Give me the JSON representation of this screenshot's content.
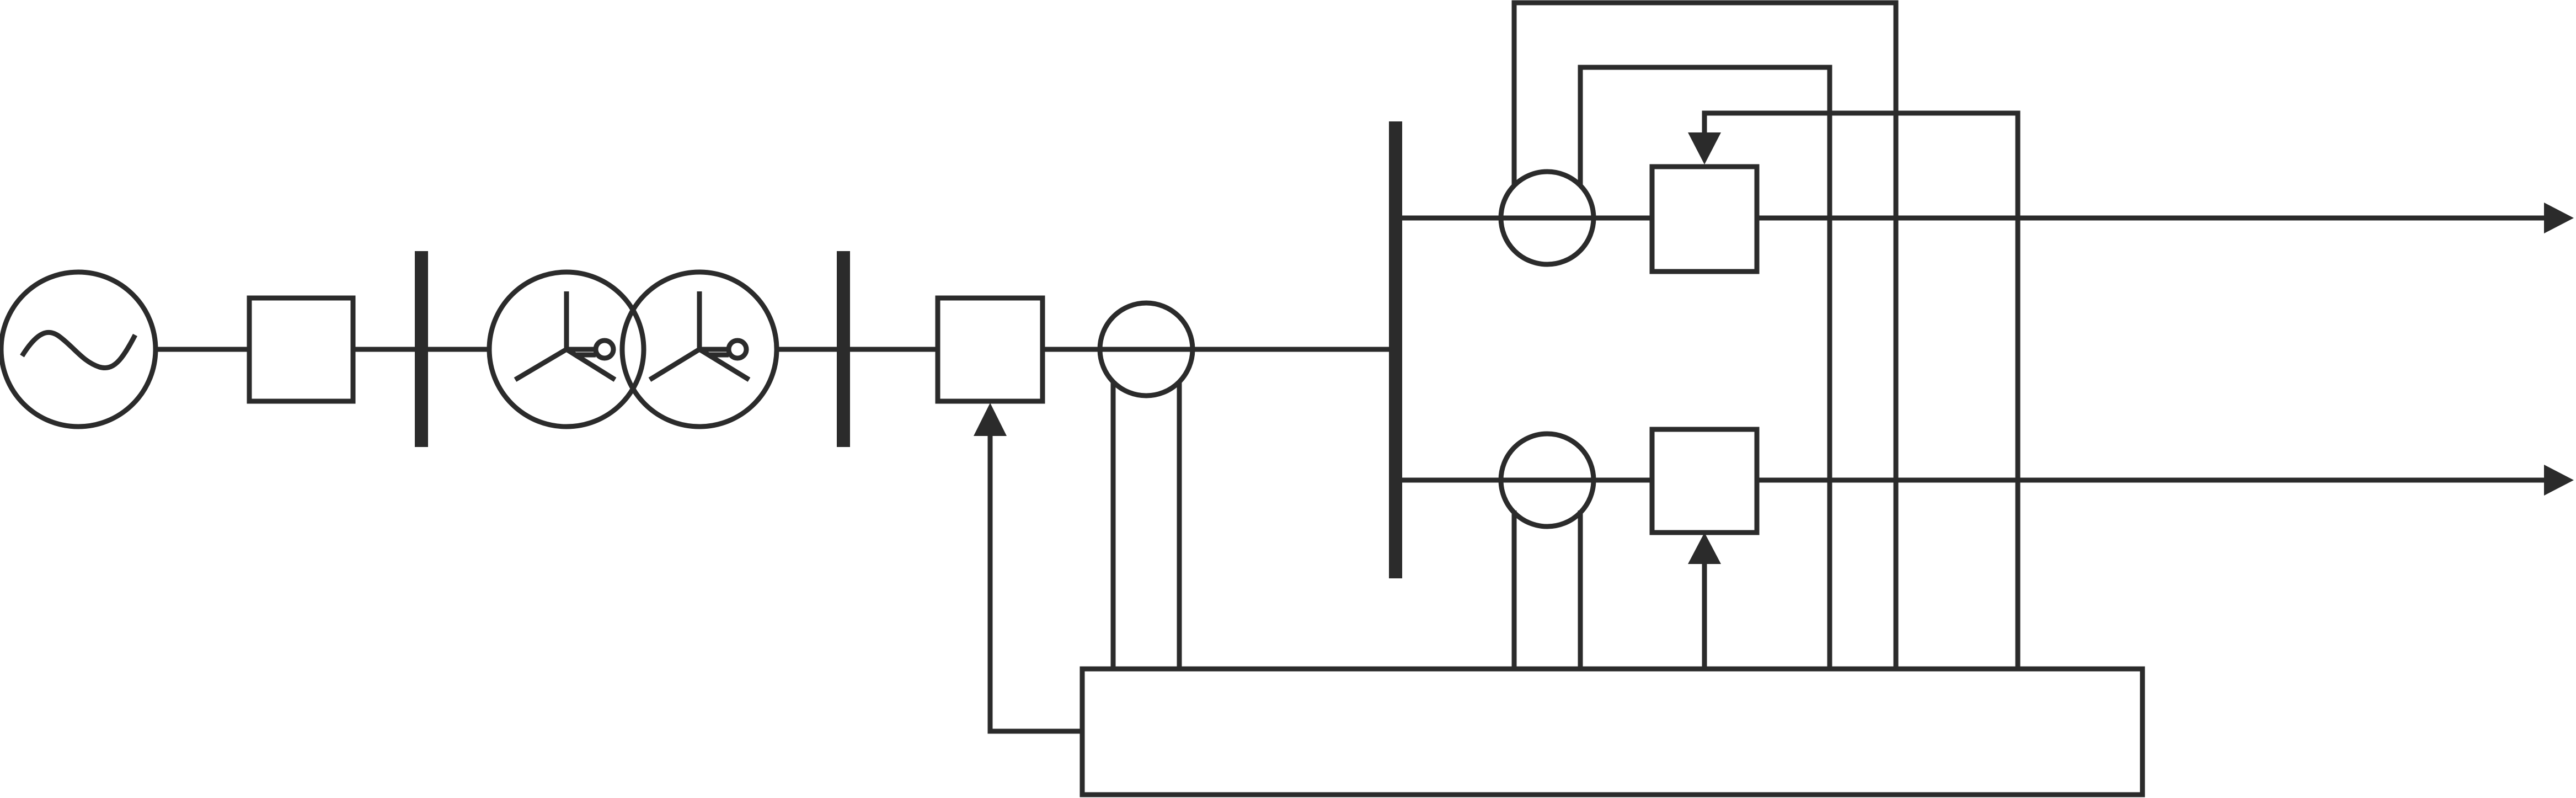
{
  "diagram": {
    "type": "single-line power system diagram",
    "colors": {
      "stroke": "#2b2b2b",
      "background": "#ffffff"
    },
    "components": [
      {
        "id": "generator",
        "symbol": "ac-source-icon"
      },
      {
        "id": "breaker-gen",
        "symbol": "box"
      },
      {
        "id": "bus-gen",
        "symbol": "vertical-bus"
      },
      {
        "id": "transformer",
        "symbol": "two-winding-wye-wye-transformer-icon"
      },
      {
        "id": "bus-hv",
        "symbol": "vertical-bus"
      },
      {
        "id": "breaker-main",
        "symbol": "box"
      },
      {
        "id": "ct-main",
        "symbol": "current-transformer-icon"
      },
      {
        "id": "bus-main",
        "symbol": "vertical-bus"
      },
      {
        "id": "ct-feeder-1",
        "symbol": "current-transformer-icon"
      },
      {
        "id": "breaker-feeder-1",
        "symbol": "box"
      },
      {
        "id": "ct-feeder-2",
        "symbol": "current-transformer-icon"
      },
      {
        "id": "breaker-feeder-2",
        "symbol": "box"
      },
      {
        "id": "controller",
        "symbol": "box"
      }
    ],
    "outputs": [
      "feeder-1-output-arrow",
      "feeder-2-output-arrow"
    ]
  }
}
